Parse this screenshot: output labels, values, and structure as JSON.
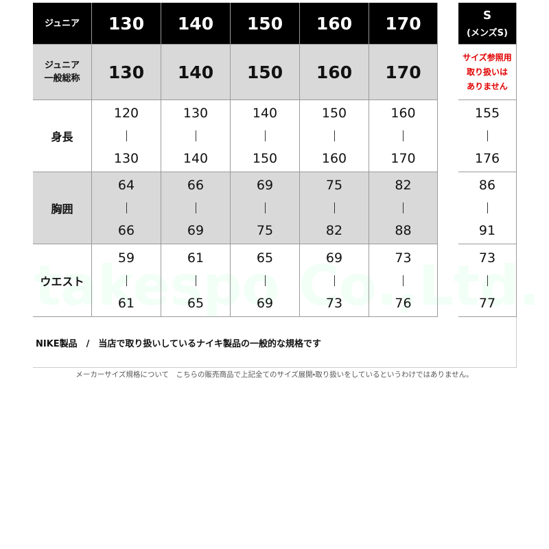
{
  "header": {
    "label": "ジュニア",
    "sizes": [
      130,
      140,
      150,
      160,
      170
    ],
    "s_label": "S",
    "s_sub": "(メンズS)"
  },
  "general": {
    "label": [
      "ジュニア",
      "一般総称"
    ],
    "sizes": [
      130,
      140,
      150,
      160,
      170
    ],
    "s_note": [
      "サイズ参照用",
      "取り扱いは",
      "ありません"
    ]
  },
  "rows": [
    {
      "label": "身長",
      "ranges": [
        [
          120,
          130
        ],
        [
          130,
          140
        ],
        [
          140,
          150
        ],
        [
          150,
          160
        ],
        [
          160,
          170
        ]
      ],
      "s_range": [
        155,
        176
      ]
    },
    {
      "label": "胸囲",
      "ranges": [
        [
          64,
          66
        ],
        [
          66,
          69
        ],
        [
          69,
          75
        ],
        [
          75,
          82
        ],
        [
          82,
          88
        ]
      ],
      "s_range": [
        86,
        91
      ]
    },
    {
      "label": "ウエスト",
      "ranges": [
        [
          59,
          61
        ],
        [
          61,
          65
        ],
        [
          65,
          69
        ],
        [
          69,
          73
        ],
        [
          73,
          76
        ]
      ],
      "s_range": [
        73,
        77
      ]
    }
  ],
  "watermark": "takespo Co.,Ltd.",
  "footer": "NIKE製品　/　当店で取り扱いしているナイキ製品の一般的な規格です",
  "caption": "メーカーサイズ規格について　こちらの販売商品で上記全てのサイズ展開・取り扱いをしているというわけではありません。"
}
